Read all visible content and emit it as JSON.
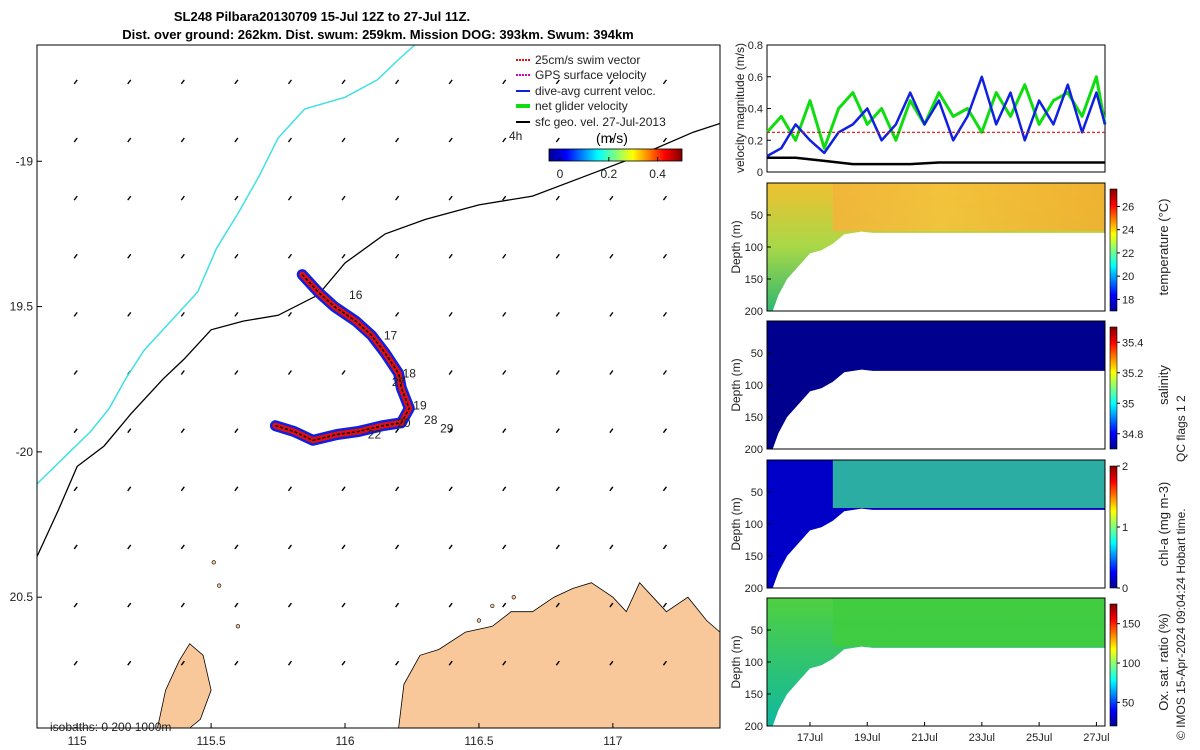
{
  "header": {
    "title_line1": "SL248 Pilbara20130709 15-Jul 12Z to 27-Jul 11Z.",
    "title_line2": "Dist. over ground: 262km. Dist. swum: 259km. Mission DOG: 393km. Swum: 394km"
  },
  "colors": {
    "land": "#f8c89a",
    "isobath_200": "#000000",
    "isobath_1000": "#3fe0e6",
    "swim_vector": "#e01010",
    "gps_velocity": "#d000d0",
    "dive_avg": "#1020e0",
    "net_glider": "#10dd10",
    "sfc_geo": "#000000"
  },
  "chart_data": [
    {
      "type": "map",
      "name": "glider_track_map",
      "xlim": [
        114.85,
        117.4
      ],
      "ylim": [
        -20.95,
        -18.6
      ],
      "y_inverted_labels": true,
      "x_ticks": [
        115,
        115.5,
        116,
        116.5,
        117
      ],
      "x_tick_labels": [
        "115",
        "115.5",
        "116",
        "116.5",
        "117"
      ],
      "y_ticks": [
        -19,
        -19.5,
        -20,
        -20.5
      ],
      "y_tick_labels": [
        "-19",
        "19.5",
        "-20",
        "20.5"
      ],
      "legend": {
        "placement": "top-right",
        "entries": [
          "25cm/s swim vector",
          "GPS surface velocity",
          "dive-avg current veloc.",
          "net glider velocity",
          "sfc geo. vel. 27-Jul-2013"
        ],
        "extra_label": "4h"
      },
      "colorbar": {
        "label": "(m/s)",
        "ticks": [
          "0",
          "0.2",
          "0.4"
        ],
        "range": [
          0,
          0.5
        ]
      },
      "isobath_label": "isobaths: 0   200  1000m",
      "day_labels": [
        {
          "day": "16",
          "lon": 116.0,
          "lat": -19.46
        },
        {
          "day": "17",
          "lon": 116.13,
          "lat": -19.6
        },
        {
          "day": "18",
          "lon": 116.2,
          "lat": -19.73
        },
        {
          "day": "27",
          "lon": 116.16,
          "lat": -19.76
        },
        {
          "day": "19",
          "lon": 116.24,
          "lat": -19.84
        },
        {
          "day": "28",
          "lon": 116.28,
          "lat": -19.89
        },
        {
          "day": "20",
          "lon": 116.18,
          "lat": -19.9
        },
        {
          "day": "29",
          "lon": 116.34,
          "lat": -19.92
        },
        {
          "day": "22",
          "lon": 116.07,
          "lat": -19.94
        }
      ],
      "track": [
        [
          115.84,
          -19.39
        ],
        [
          115.9,
          -19.45
        ],
        [
          115.96,
          -19.5
        ],
        [
          116.04,
          -19.55
        ],
        [
          116.1,
          -19.6
        ],
        [
          116.15,
          -19.66
        ],
        [
          116.2,
          -19.73
        ],
        [
          116.21,
          -19.78
        ],
        [
          116.24,
          -19.85
        ],
        [
          116.21,
          -19.9
        ],
        [
          116.14,
          -19.91
        ],
        [
          116.05,
          -19.93
        ],
        [
          115.97,
          -19.94
        ],
        [
          115.88,
          -19.96
        ],
        [
          115.81,
          -19.93
        ],
        [
          115.74,
          -19.91
        ]
      ],
      "isobath_200": [
        [
          114.85,
          -20.36
        ],
        [
          114.93,
          -20.2
        ],
        [
          115.0,
          -20.05
        ],
        [
          115.1,
          -19.98
        ],
        [
          115.2,
          -19.87
        ],
        [
          115.32,
          -19.75
        ],
        [
          115.4,
          -19.68
        ],
        [
          115.5,
          -19.58
        ],
        [
          115.62,
          -19.55
        ],
        [
          115.75,
          -19.53
        ],
        [
          115.9,
          -19.46
        ],
        [
          116.0,
          -19.35
        ],
        [
          116.15,
          -19.25
        ],
        [
          116.3,
          -19.2
        ],
        [
          116.5,
          -19.15
        ],
        [
          116.7,
          -19.12
        ],
        [
          116.9,
          -19.05
        ],
        [
          117.1,
          -18.98
        ],
        [
          117.3,
          -18.9
        ],
        [
          117.4,
          -18.87
        ]
      ],
      "isobath_1000": [
        [
          114.85,
          -20.11
        ],
        [
          114.95,
          -20.02
        ],
        [
          115.05,
          -19.93
        ],
        [
          115.12,
          -19.85
        ],
        [
          115.18,
          -19.75
        ],
        [
          115.25,
          -19.65
        ],
        [
          115.35,
          -19.55
        ],
        [
          115.45,
          -19.45
        ],
        [
          115.52,
          -19.3
        ],
        [
          115.6,
          -19.18
        ],
        [
          115.68,
          -19.05
        ],
        [
          115.75,
          -18.92
        ],
        [
          115.85,
          -18.82
        ],
        [
          116.0,
          -18.78
        ],
        [
          116.12,
          -18.72
        ],
        [
          116.2,
          -18.65
        ],
        [
          116.26,
          -18.6
        ]
      ],
      "vector_field_spacing_deg": 0.2
    },
    {
      "type": "line",
      "name": "velocity_magnitude",
      "ylabel": "velocity magnitude (m/s)",
      "ylim": [
        0,
        0.8
      ],
      "y_ticks": [
        "0",
        "0.2",
        "0.4",
        "0.6",
        "0.8"
      ],
      "xlim": [
        15.5,
        27.3
      ],
      "series": [
        {
          "name": "net glider velocity",
          "color": "#10dd10",
          "x": [
            15.5,
            16,
            16.5,
            17,
            17.5,
            18,
            18.5,
            19,
            19.5,
            20,
            20.5,
            21,
            21.5,
            22,
            22.5,
            23,
            23.5,
            24,
            24.5,
            25,
            25.5,
            26,
            26.5,
            27,
            27.3
          ],
          "values": [
            0.25,
            0.35,
            0.2,
            0.45,
            0.15,
            0.4,
            0.5,
            0.3,
            0.4,
            0.2,
            0.45,
            0.3,
            0.5,
            0.35,
            0.4,
            0.25,
            0.5,
            0.35,
            0.55,
            0.3,
            0.45,
            0.5,
            0.35,
            0.6,
            0.3
          ]
        },
        {
          "name": "dive-avg current veloc.",
          "color": "#1020e0",
          "x": [
            15.5,
            16,
            16.5,
            17,
            17.5,
            18,
            18.5,
            19,
            19.5,
            20,
            20.5,
            21,
            21.5,
            22,
            22.5,
            23,
            23.5,
            24,
            24.5,
            25,
            25.5,
            26,
            26.5,
            27,
            27.3
          ],
          "values": [
            0.1,
            0.15,
            0.3,
            0.2,
            0.12,
            0.25,
            0.3,
            0.4,
            0.2,
            0.3,
            0.5,
            0.3,
            0.45,
            0.2,
            0.35,
            0.6,
            0.3,
            0.5,
            0.2,
            0.45,
            0.3,
            0.55,
            0.25,
            0.5,
            0.3
          ]
        },
        {
          "name": "sfc geo. vel. 27-Jul-2013",
          "color": "#000000",
          "x": [
            15.5,
            16.5,
            17.5,
            18.5,
            19.5,
            20.5,
            21.5,
            22.5,
            23.5,
            24.5,
            25.5,
            26.5,
            27.3
          ],
          "values": [
            0.09,
            0.09,
            0.07,
            0.05,
            0.05,
            0.05,
            0.06,
            0.06,
            0.06,
            0.06,
            0.06,
            0.06,
            0.06
          ]
        },
        {
          "name": "25cm/s swim vector",
          "color": "#e01010",
          "x": [
            15.5,
            27.3
          ],
          "values": [
            0.25,
            0.25
          ]
        }
      ]
    },
    {
      "type": "heatmap",
      "name": "temperature_section",
      "ylabel": "Depth (m)",
      "y_ticks": [
        "50",
        "100",
        "150",
        "200"
      ],
      "ylim": [
        200,
        0
      ],
      "colorbar_label": "temperature (°C)",
      "colorbar_ticks": [
        "18",
        "20",
        "22",
        "24",
        "26"
      ],
      "colorbar_range": [
        17,
        27.5
      ],
      "typical_value": 25.5
    },
    {
      "type": "heatmap",
      "name": "salinity_section",
      "ylabel": "Depth (m)",
      "y_ticks": [
        "50",
        "100",
        "150",
        "200"
      ],
      "ylim": [
        200,
        0
      ],
      "colorbar_label": "salinity",
      "colorbar_ticks": [
        "34.8",
        "35",
        "35.2",
        "35.4"
      ],
      "colorbar_range": [
        34.7,
        35.5
      ],
      "typical_value": 34.72
    },
    {
      "type": "heatmap",
      "name": "chla_section",
      "ylabel": "Depth (m)",
      "y_ticks": [
        "50",
        "100",
        "150",
        "200"
      ],
      "ylim": [
        200,
        0
      ],
      "colorbar_label": "chl-a (mg m-3)",
      "colorbar_ticks": [
        "0",
        "1",
        "2"
      ],
      "colorbar_range": [
        0,
        2
      ],
      "typical_value": 1.1
    },
    {
      "type": "heatmap",
      "name": "oxygen_section",
      "ylabel": "Depth (m)",
      "y_ticks": [
        "50",
        "100",
        "150",
        "200"
      ],
      "ylim": [
        200,
        0
      ],
      "colorbar_label": "Ox. sat. ratio (%)",
      "colorbar_ticks": [
        "50",
        "100",
        "150"
      ],
      "colorbar_range": [
        20,
        175
      ],
      "typical_value": 110
    }
  ],
  "time_axis": {
    "tick_labels": [
      "17Jul",
      "19Jul",
      "21Jul",
      "23Jul",
      "25Jul",
      "27Jul"
    ],
    "tick_days": [
      17,
      19,
      21,
      23,
      25,
      27
    ]
  },
  "footer": {
    "qc_label": "QC flags 1  2",
    "credit": "© IMOS 15-Apr-2024 09:04:24 Hobart time."
  }
}
